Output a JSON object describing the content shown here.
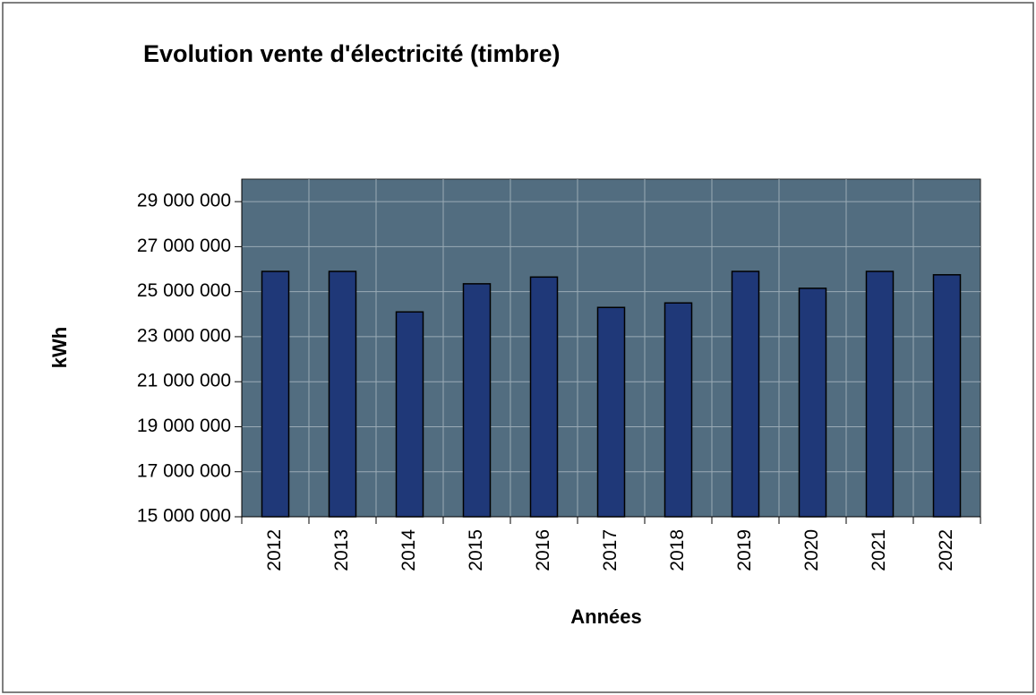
{
  "chart_data": {
    "type": "bar",
    "title": "Evolution vente d'électricité (timbre)",
    "x_label": "Années",
    "y_label": "kWh",
    "categories": [
      "2012",
      "2013",
      "2014",
      "2015",
      "2016",
      "2017",
      "2018",
      "2019",
      "2020",
      "2021",
      "2022"
    ],
    "values": [
      25900000,
      25900000,
      24100000,
      25350000,
      25650000,
      24300000,
      24500000,
      25900000,
      25150000,
      25900000,
      25750000
    ],
    "color": "#1f3878",
    "ylim": [
      15000000,
      30000000
    ],
    "yticks": [
      {
        "value": 15000000,
        "label": "15 000 000"
      },
      {
        "value": 17000000,
        "label": "17 000 000"
      },
      {
        "value": 19000000,
        "label": "19 000 000"
      },
      {
        "value": 21000000,
        "label": "21 000 000"
      },
      {
        "value": 23000000,
        "label": "23 000 000"
      },
      {
        "value": 25000000,
        "label": "25 000 000"
      },
      {
        "value": 27000000,
        "label": "27 000 000"
      },
      {
        "value": 29000000,
        "label": "29 000 000"
      }
    ],
    "grid": true
  }
}
